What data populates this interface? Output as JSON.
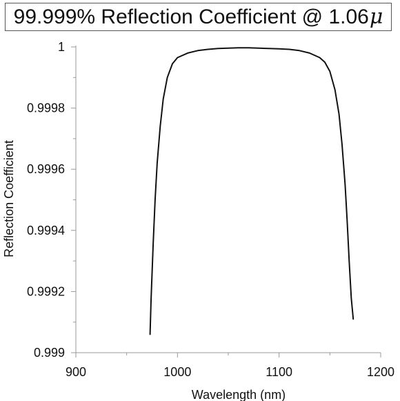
{
  "title": {
    "text": "99.999% Reflection Coefficient @ 1.06",
    "symbol": "μ"
  },
  "chart_data": {
    "type": "line",
    "xlabel": "Wavelength (nm)",
    "ylabel": "Reflection Coefficient",
    "xlim": [
      900,
      1200
    ],
    "ylim": [
      0.999,
      1
    ],
    "xticks": [
      900,
      1000,
      1100,
      1200
    ],
    "xtick_labels": [
      "900",
      "1000",
      "1100",
      "1200"
    ],
    "yticks": [
      0.999,
      0.9992,
      0.9994,
      0.9996,
      0.9998,
      1
    ],
    "ytick_labels": [
      "0.999",
      "0.9992",
      "0.9994",
      "0.9996",
      "0.9998",
      "1"
    ],
    "grid": false,
    "line_color": "#111111",
    "series": [
      {
        "x": [
          973,
          974,
          976,
          978,
          980,
          983,
          986,
          990,
          995,
          1000,
          1010,
          1020,
          1030,
          1040,
          1050,
          1060,
          1070,
          1080,
          1090,
          1100,
          1110,
          1120,
          1130,
          1140,
          1145,
          1150,
          1155,
          1159,
          1162,
          1165,
          1167,
          1169,
          1171,
          1173
        ],
        "y": [
          0.99906,
          0.99917,
          0.99935,
          0.9995,
          0.99962,
          0.99974,
          0.99983,
          0.9999,
          0.999945,
          0.999965,
          0.99998,
          0.999988,
          0.999992,
          0.999995,
          0.999996,
          0.999997,
          0.999997,
          0.999996,
          0.999995,
          0.999994,
          0.999992,
          0.999988,
          0.99998,
          0.999965,
          0.99995,
          0.99992,
          0.99986,
          0.99978,
          0.99968,
          0.99955,
          0.99943,
          0.9993,
          0.99918,
          0.99911
        ]
      }
    ]
  }
}
